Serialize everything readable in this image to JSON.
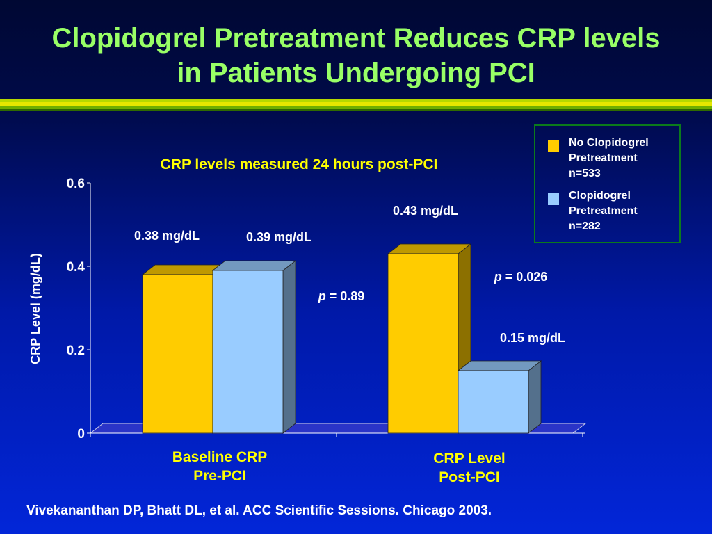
{
  "slide": {
    "title_line1": "Clopidogrel Pretreatment Reduces CRP levels",
    "title_line2": "in Patients Undergoing PCI",
    "subtitle": "CRP levels measured 24 hours post-PCI",
    "footer": "Vivekananthan DP, Bhatt DL, et al. ACC Scientific Sessions. Chicago 2003."
  },
  "legend": {
    "items": [
      {
        "label": "No Clopidogrel\nPretreatment\nn=533",
        "color": "#ffcc00"
      },
      {
        "label": "Clopidogrel\nPretreatment\nn=282",
        "color": "#99ccff"
      }
    ]
  },
  "chart_data": {
    "type": "bar",
    "style": "3d",
    "title": "CRP levels measured 24 hours post-PCI",
    "ylabel": "CRP Level (mg/dL)",
    "ylim": [
      0,
      0.6
    ],
    "yticks": [
      "0",
      "0.2",
      "0.4",
      "0.6"
    ],
    "categories": [
      "Baseline CRP\nPre-PCI",
      "CRP Level\nPost-PCI"
    ],
    "series": [
      {
        "name": "No Clopidogrel Pretreatment n=533",
        "color": "#ffcc00",
        "values": [
          0.38,
          0.43
        ],
        "labels": [
          "0.38 mg/dL",
          "0.43 mg/dL"
        ]
      },
      {
        "name": "Clopidogrel Pretreatment n=282",
        "color": "#99ccff",
        "values": [
          0.39,
          0.15
        ],
        "labels": [
          "0.39 mg/dL",
          "0.15 mg/dL"
        ]
      }
    ],
    "annotations": [
      {
        "category": 0,
        "prefix": "p",
        "text": " = 0.89"
      },
      {
        "category": 1,
        "prefix": "p",
        "text": " = 0.026"
      }
    ],
    "grid": false,
    "legend_position": "top-right"
  }
}
